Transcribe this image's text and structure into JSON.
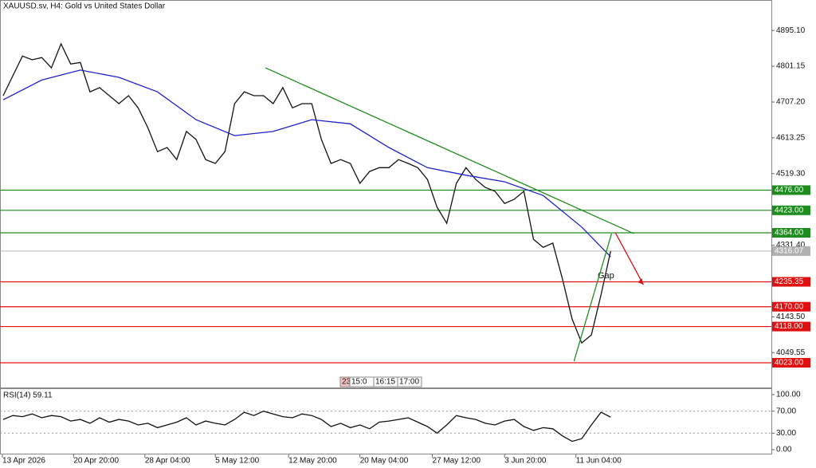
{
  "chart_data": [
    {
      "type": "price",
      "title": "XAUUSD.sv, H4:  Gold vs United States Dollar",
      "xlim": [
        -0.33,
        79.67
      ],
      "ylim": [
        3956,
        4975
      ],
      "yticks": [
        {
          "value": 4895.1,
          "label": "4895.10"
        },
        {
          "value": 4801.15,
          "label": "4801.15"
        },
        {
          "value": 4707.2,
          "label": "4707.20"
        },
        {
          "value": 4613.25,
          "label": "4613.25"
        },
        {
          "value": 4519.3,
          "label": "4519.30"
        },
        {
          "value": 4331.4,
          "label": "4331.40"
        },
        {
          "value": 4143.5,
          "label": "4143.50"
        },
        {
          "value": 4049.55,
          "label": "4049.55"
        }
      ],
      "xticks": [
        {
          "value": -0.08,
          "label": "13 Apr 2026"
        },
        {
          "value": 7.3,
          "label": "20 Apr 20:00"
        },
        {
          "value": 14.7,
          "label": "28 Apr 04:00"
        },
        {
          "value": 22,
          "label": "5 May 12:00"
        },
        {
          "value": 29.6,
          "label": "12 May 20:00"
        },
        {
          "value": 37,
          "label": "20 May 04:00"
        },
        {
          "value": 44.5,
          "label": "27 May 12:00"
        },
        {
          "value": 52,
          "label": "3 Jun 20:00"
        },
        {
          "value": 59.4,
          "label": "11 Jun 04:00"
        }
      ],
      "series": [
        {
          "color": "#111111",
          "values": [
            4724,
            4776,
            4828,
            4818,
            4824,
            4797,
            4860,
            4807,
            4811,
            4734,
            4745,
            4724,
            4703,
            4724,
            4692,
            4640,
            4577,
            4588,
            4556,
            4630,
            4609,
            4556,
            4546,
            4577,
            4703,
            4734,
            4724,
            4724,
            4703,
            4745,
            4692,
            4703,
            4703,
            4609,
            4546,
            4556,
            4546,
            4494,
            4525,
            4535,
            4535,
            4556,
            4546,
            4535,
            4504,
            4431,
            4389,
            4494,
            4535,
            4504,
            4483,
            4473,
            4441,
            4452,
            4473,
            4347,
            4326,
            4337,
            4243,
            4138,
            4075,
            4096,
            4201,
            4316.07
          ]
        },
        {
          "color": "#1f22c8",
          "x": [
            0,
            4,
            8,
            12,
            16,
            20,
            24,
            28,
            32,
            36,
            40,
            44,
            48,
            52,
            56,
            60,
            63
          ],
          "values": [
            4713,
            4765,
            4791,
            4772,
            4734,
            4661,
            4619,
            4630,
            4661,
            4650,
            4588,
            4535,
            4515,
            4498,
            4462,
            4379,
            4301
          ]
        }
      ],
      "current": {
        "value": 4316.07,
        "label": "4316.07",
        "color": "#b0b0b0"
      },
      "levels": [
        {
          "value": 4476,
          "label": "4476.00",
          "color": "#1e8c1e"
        },
        {
          "value": 4423,
          "label": "4423.00",
          "color": "#1e8c1e"
        },
        {
          "value": 4364,
          "label": "4364.00",
          "color": "#1e8c1e"
        },
        {
          "value": 4235.35,
          "label": "4235.35",
          "color": "#e01010"
        },
        {
          "value": 4170,
          "label": "4170.00",
          "color": "#e01010"
        },
        {
          "value": 4118,
          "label": "4118.00",
          "color": "#e01010"
        },
        {
          "value": 4023,
          "label": "4023.00",
          "color": "#e01010"
        }
      ],
      "trendlines": [
        {
          "color": "#1e8c1e",
          "x": [
            27.2,
            65.4
          ],
          "values": [
            4797,
            4362
          ]
        },
        {
          "color": "#1e8c1e",
          "x": [
            59.2,
            63.1
          ],
          "values": [
            4027,
            4362
          ]
        },
        {
          "color": "#e01010",
          "x": [
            63.5,
            66.4
          ],
          "values": [
            4364,
            4228
          ]
        }
      ],
      "annotation": "Gap",
      "time_box": [
        "23",
        "15:0",
        "16:15",
        "17:00"
      ]
    },
    {
      "type": "rsi",
      "title": "RSI(14) 59.11",
      "ylim": [
        -8.7,
        111.6
      ],
      "yticks": [
        {
          "value": 100,
          "label": "100.00"
        },
        {
          "value": 70,
          "label": "70.00"
        },
        {
          "value": 30,
          "label": "30.00"
        },
        {
          "value": 0,
          "label": "0.00"
        }
      ],
      "levels": [
        70,
        30
      ],
      "series": [
        {
          "color": "#111111",
          "values": [
            55,
            62,
            60,
            65,
            58,
            62,
            60,
            52,
            55,
            48,
            58,
            50,
            55,
            52,
            45,
            48,
            40,
            45,
            50,
            58,
            45,
            52,
            48,
            45,
            55,
            68,
            62,
            70,
            65,
            60,
            58,
            65,
            62,
            55,
            42,
            48,
            40,
            45,
            38,
            50,
            52,
            55,
            58,
            50,
            42,
            30,
            45,
            62,
            58,
            55,
            48,
            45,
            52,
            55,
            42,
            35,
            40,
            38,
            25,
            15,
            20,
            45,
            68,
            59.11
          ]
        }
      ]
    }
  ]
}
